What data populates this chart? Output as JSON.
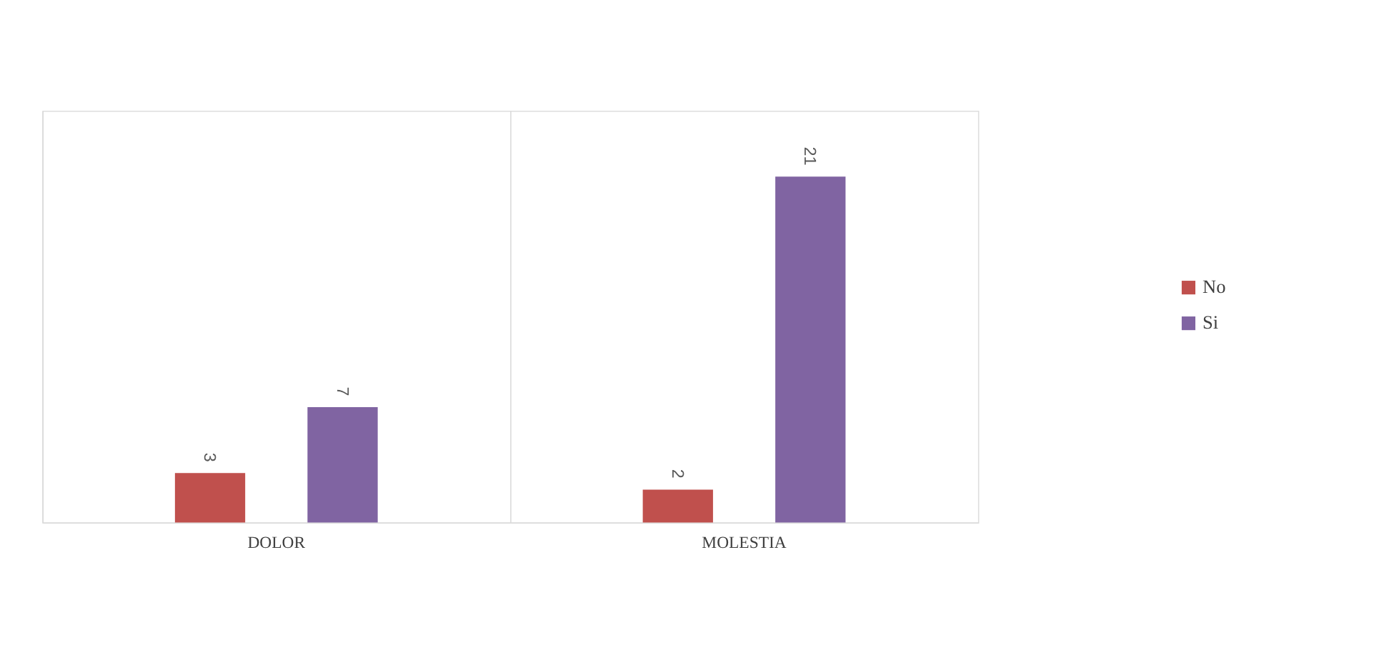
{
  "chart_data": {
    "type": "bar",
    "categories": [
      "DOLOR",
      "MOLESTIA"
    ],
    "series": [
      {
        "name": "No",
        "color": "#c0504d",
        "values": [
          3,
          2
        ]
      },
      {
        "name": "Si",
        "color": "#8064a2",
        "values": [
          7,
          21
        ]
      }
    ],
    "ylim": [
      0,
      25
    ],
    "data_labels": true,
    "grid": "x",
    "legend": "right",
    "tick_labels": "x"
  }
}
